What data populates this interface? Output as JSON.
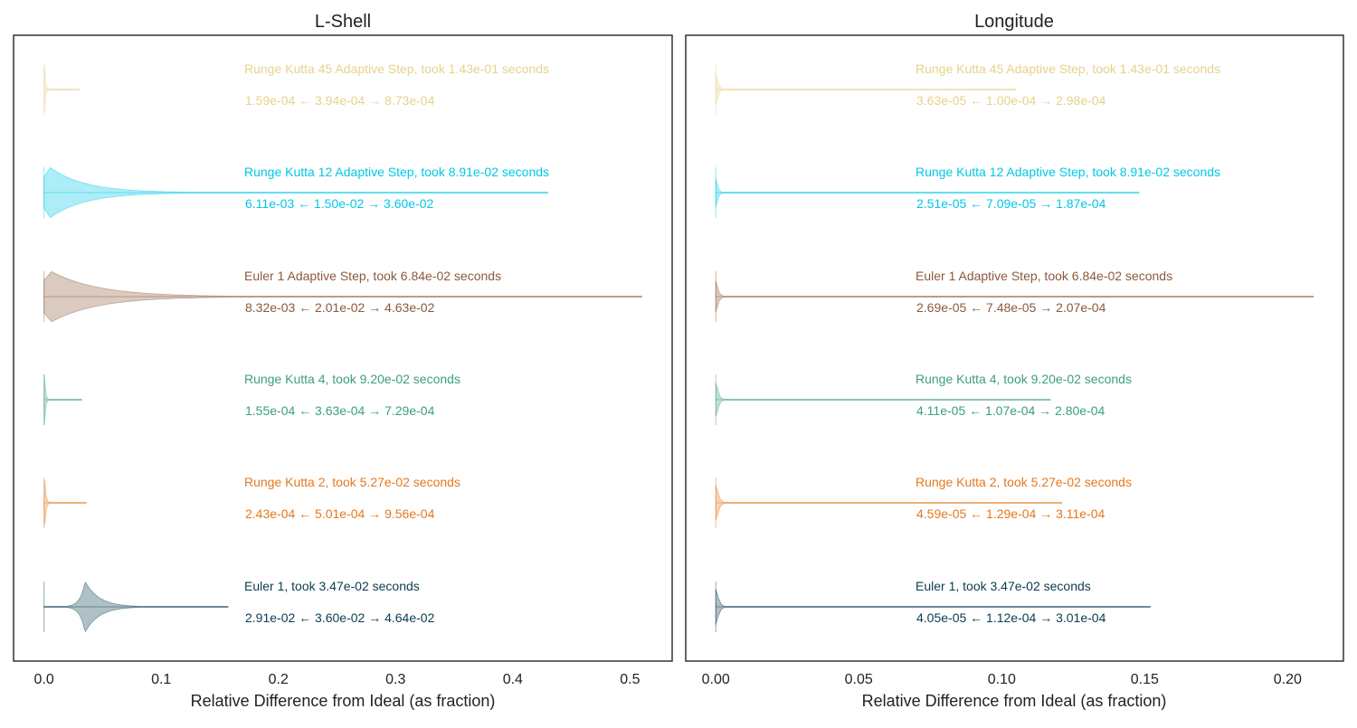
{
  "chart_data": [
    {
      "type": "violin",
      "title": "L-Shell",
      "xlabel": "Relative Difference from Ideal (as fraction)",
      "xlim": [
        -0.026,
        0.536
      ],
      "xticks": [
        0.0,
        0.1,
        0.2,
        0.3,
        0.4,
        0.5
      ],
      "xtick_labels": [
        "0.0",
        "0.1",
        "0.2",
        "0.3",
        "0.4",
        "0.5"
      ],
      "series": [
        {
          "label": "Runge Kutta 45 Adaptive Step, took 1.43e-01 seconds",
          "stats_text": "1.59e-04  ←  3.94e-04  →  8.73e-04",
          "color": "#e6d28c",
          "min": 0.0,
          "mode": 0.0004,
          "max": 0.03,
          "modeHalf": 28,
          "spread": 0.0009
        },
        {
          "label": "Runge Kutta 12 Adaptive Step, took 8.91e-02 seconds",
          "stats_text": "6.11e-03  ←  1.50e-02  →  3.60e-02",
          "color": "#00c8e6",
          "min": 0.0,
          "mode": 0.005,
          "max": 0.43,
          "modeHalf": 28,
          "spread": 0.03
        },
        {
          "label": "Euler 1 Adaptive Step, took 6.84e-02 seconds",
          "stats_text": "8.32e-03  ←  2.01e-02  →  4.63e-02",
          "color": "#8b5a3c",
          "min": 0.0,
          "mode": 0.006,
          "max": 0.51,
          "modeHalf": 28,
          "spread": 0.04
        },
        {
          "label": "Runge Kutta 4, took 9.20e-02 seconds",
          "stats_text": "1.55e-04  ←  3.63e-04  →  7.29e-04",
          "color": "#3c9e82",
          "min": 0.0,
          "mode": 0.0004,
          "max": 0.032,
          "modeHalf": 28,
          "spread": 0.0009
        },
        {
          "label": "Runge Kutta 2, took 5.27e-02 seconds",
          "stats_text": "2.43e-04  ←  5.01e-04  →  9.56e-04",
          "color": "#e6781e",
          "min": 0.0,
          "mode": 0.0005,
          "max": 0.036,
          "modeHalf": 28,
          "spread": 0.0011
        },
        {
          "label": "Euler 1, took 3.47e-02 seconds",
          "stats_text": "2.91e-02  ←  3.60e-02  →  4.64e-02",
          "color": "#0a3c50",
          "min": 0.0,
          "mode": 0.035,
          "max": 0.157,
          "modeHalf": 28,
          "spread": 0.012
        }
      ]
    },
    {
      "type": "violin",
      "title": "Longitude",
      "xlabel": "Relative Difference from Ideal (as fraction)",
      "xlim": [
        -0.0105,
        0.2195
      ],
      "xticks": [
        0.0,
        0.05,
        0.1,
        0.15,
        0.2
      ],
      "xtick_labels": [
        "0.00",
        "0.05",
        "0.10",
        "0.15",
        "0.20"
      ],
      "series": [
        {
          "label": "Runge Kutta 45 Adaptive Step, took 1.43e-01 seconds",
          "stats_text": "3.63e-05  ←  1.00e-04  →  2.98e-04",
          "color": "#e6d28c",
          "min": 0.0,
          "mode": 0.0001,
          "max": 0.105,
          "modeHalf": 28,
          "spread": 0.0006
        },
        {
          "label": "Runge Kutta 12 Adaptive Step, took 8.91e-02 seconds",
          "stats_text": "2.51e-05  ←  7.09e-05  →  1.87e-04",
          "color": "#00c8e6",
          "min": 0.0,
          "mode": 0.0001,
          "max": 0.148,
          "modeHalf": 28,
          "spread": 0.0005
        },
        {
          "label": "Euler 1 Adaptive Step, took 6.84e-02 seconds",
          "stats_text": "2.69e-05  ←  7.48e-05  →  2.07e-04",
          "color": "#8b5a3c",
          "min": 0.0,
          "mode": 0.0001,
          "max": 0.209,
          "modeHalf": 28,
          "spread": 0.0006
        },
        {
          "label": "Runge Kutta 4, took 9.20e-02 seconds",
          "stats_text": "4.11e-05  ←  1.07e-04  →  2.80e-04",
          "color": "#3c9e82",
          "min": 0.0,
          "mode": 0.0001,
          "max": 0.117,
          "modeHalf": 28,
          "spread": 0.0007
        },
        {
          "label": "Runge Kutta 2, took 5.27e-02 seconds",
          "stats_text": "4.59e-05  ←  1.29e-04  →  3.11e-04",
          "color": "#e6781e",
          "min": 0.0,
          "mode": 0.0001,
          "max": 0.121,
          "modeHalf": 28,
          "spread": 0.0008
        },
        {
          "label": "Euler 1, took 3.47e-02 seconds",
          "stats_text": "4.05e-05  ←  1.12e-04  →  3.01e-04",
          "color": "#0a3c50",
          "min": 0.0,
          "mode": 0.0001,
          "max": 0.152,
          "modeHalf": 28,
          "spread": 0.0008
        }
      ]
    }
  ]
}
